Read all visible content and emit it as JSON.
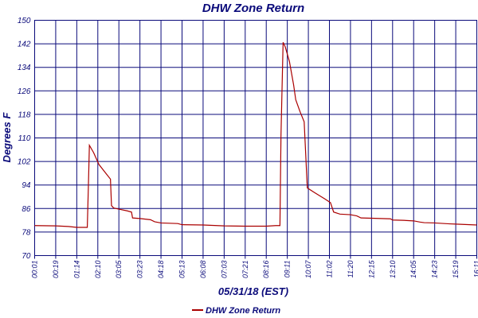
{
  "chart_data": {
    "type": "line",
    "title": "DHW Zone Return",
    "xlabel": "05/31/18 (EST)",
    "ylabel": "Degrees F",
    "ylim": [
      70,
      150
    ],
    "yticks": [
      "150",
      "142",
      "134",
      "126",
      "118",
      "110",
      "102",
      "94",
      "86",
      "78",
      "70"
    ],
    "xticks": [
      "00:01",
      "00:19",
      "01:14",
      "02:10",
      "03:05",
      "03:23",
      "04:18",
      "05:13",
      "06:08",
      "07:03",
      "07:21",
      "08:16",
      "09:11",
      "10:07",
      "11:02",
      "11:20",
      "12:15",
      "13:10",
      "14:05",
      "14:23",
      "15:19",
      "16:11"
    ],
    "grid": true,
    "legend_position": "bottom",
    "colors": {
      "line": "#aa0000",
      "grid": "#0a0a7a",
      "text": "#0a0a7a"
    },
    "series": [
      {
        "name": "DHW Zone Return",
        "points": [
          [
            0,
            80.2
          ],
          [
            1,
            80.1
          ],
          [
            1.6,
            79.9
          ],
          [
            2,
            79.6
          ],
          [
            2.5,
            79.6
          ],
          [
            2.55,
            93
          ],
          [
            2.6,
            107.5
          ],
          [
            2.8,
            105
          ],
          [
            3.05,
            101
          ],
          [
            3.4,
            97.8
          ],
          [
            3.6,
            96
          ],
          [
            3.65,
            87
          ],
          [
            3.75,
            86.2
          ],
          [
            4,
            85.8
          ],
          [
            4.4,
            85.2
          ],
          [
            4.6,
            84.8
          ],
          [
            4.65,
            82.8
          ],
          [
            5,
            82.6
          ],
          [
            5.5,
            82.2
          ],
          [
            5.7,
            81.5
          ],
          [
            6,
            81.1
          ],
          [
            6.8,
            80.9
          ],
          [
            7,
            80.5
          ],
          [
            8,
            80.4
          ],
          [
            9,
            80.1
          ],
          [
            10,
            80
          ],
          [
            11,
            80
          ],
          [
            11.45,
            80.2
          ],
          [
            11.65,
            80.2
          ],
          [
            11.7,
            111
          ],
          [
            11.8,
            142.5
          ],
          [
            11.9,
            141
          ],
          [
            12.1,
            136
          ],
          [
            12.3,
            128
          ],
          [
            12.4,
            123
          ],
          [
            12.6,
            119
          ],
          [
            12.8,
            115.5
          ],
          [
            12.95,
            93
          ],
          [
            13.3,
            91.4
          ],
          [
            13.5,
            90.5
          ],
          [
            13.8,
            89.2
          ],
          [
            14.05,
            88
          ],
          [
            14.2,
            84.8
          ],
          [
            14.5,
            84.1
          ],
          [
            15,
            83.9
          ],
          [
            15.3,
            83.5
          ],
          [
            15.5,
            82.8
          ],
          [
            16,
            82.7
          ],
          [
            16.9,
            82.5
          ],
          [
            17,
            82.1
          ],
          [
            17.5,
            82
          ],
          [
            18,
            81.8
          ],
          [
            18.3,
            81.4
          ],
          [
            18.5,
            81.2
          ],
          [
            19,
            81.1
          ],
          [
            19.7,
            80.8
          ],
          [
            20,
            80.7
          ],
          [
            21,
            80.4
          ]
        ]
      }
    ]
  }
}
